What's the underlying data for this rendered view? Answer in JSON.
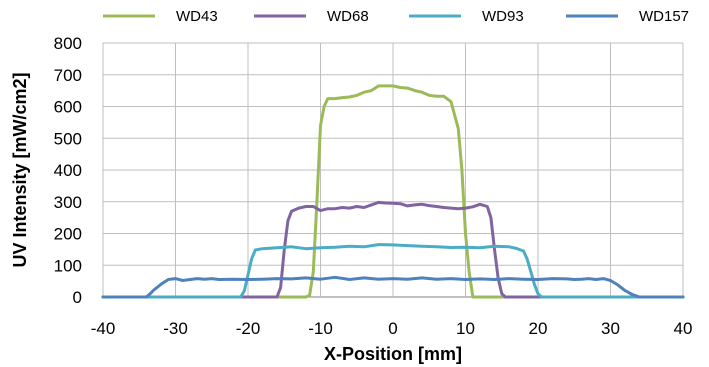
{
  "chart_data": {
    "type": "line",
    "title": "",
    "xlabel": "X-Position [mm]",
    "ylabel": "UV Intensity [mW/cm2]",
    "xlim": [
      -40,
      40
    ],
    "ylim": [
      0,
      800
    ],
    "xticks": [
      -40,
      -30,
      -20,
      -10,
      0,
      10,
      20,
      30,
      40
    ],
    "yticks": [
      0,
      100,
      200,
      300,
      400,
      500,
      600,
      700,
      800
    ],
    "grid": true,
    "legend_position": "top",
    "series": [
      {
        "name": "WD43",
        "color": "#9bbb59",
        "x": [
          -40,
          -15,
          -12,
          -11.5,
          -11,
          -10.5,
          -10,
          -9.5,
          -9,
          -8,
          -7,
          -6,
          -5,
          -4,
          -3,
          -2,
          -1,
          0,
          1,
          2,
          3,
          4,
          5,
          6,
          7,
          8,
          9,
          9.5,
          10,
          10.5,
          11,
          11.5,
          12,
          15,
          40
        ],
        "y": [
          0,
          0,
          0,
          5,
          80,
          300,
          540,
          600,
          625,
          625,
          628,
          630,
          635,
          645,
          650,
          665,
          665,
          665,
          660,
          658,
          650,
          645,
          635,
          632,
          632,
          615,
          530,
          400,
          200,
          80,
          0,
          0,
          0,
          0,
          0
        ]
      },
      {
        "name": "WD68",
        "color": "#8064a2",
        "x": [
          -40,
          -16,
          -15.5,
          -15,
          -14.5,
          -14,
          -13,
          -12,
          -11,
          -10,
          -9,
          -8,
          -7,
          -6,
          -5,
          -4,
          -3,
          -2,
          -1,
          0,
          1,
          2,
          3,
          4,
          5,
          6,
          7,
          8,
          9,
          10,
          11,
          12,
          13,
          13.5,
          14,
          14.5,
          15,
          15.5,
          16,
          40
        ],
        "y": [
          0,
          0,
          30,
          150,
          240,
          270,
          280,
          285,
          285,
          272,
          278,
          278,
          282,
          280,
          285,
          282,
          290,
          298,
          296,
          295,
          294,
          287,
          290,
          292,
          288,
          285,
          282,
          280,
          278,
          280,
          284,
          292,
          285,
          250,
          150,
          60,
          10,
          0,
          0,
          0
        ]
      },
      {
        "name": "WD93",
        "color": "#4bacc6",
        "x": [
          -40,
          -21,
          -20.5,
          -20,
          -19.5,
          -19,
          -18,
          -16,
          -14,
          -12,
          -10,
          -8,
          -6,
          -4,
          -2,
          0,
          2,
          4,
          6,
          8,
          10,
          12,
          14,
          16,
          17,
          18,
          18.5,
          19,
          19.5,
          20,
          20.5,
          21,
          40
        ],
        "y": [
          0,
          0,
          20,
          70,
          120,
          148,
          152,
          155,
          158,
          152,
          155,
          157,
          160,
          158,
          165,
          164,
          162,
          160,
          158,
          156,
          157,
          155,
          160,
          158,
          153,
          145,
          120,
          80,
          40,
          10,
          0,
          0,
          0
        ],
        "hidden": false
      },
      {
        "name": "WD157",
        "color": "#4f81bd",
        "x": [
          -40,
          -34,
          -33.5,
          -33,
          -32,
          -31,
          -30,
          -29,
          -28,
          -27,
          -26,
          -25,
          -24,
          -22,
          -20,
          -18,
          -16,
          -14,
          -12,
          -10,
          -8,
          -6,
          -4,
          -2,
          0,
          2,
          4,
          6,
          8,
          10,
          12,
          14,
          16,
          18,
          20,
          22,
          24,
          25,
          26,
          27,
          28,
          29,
          30,
          31,
          32,
          33,
          34,
          40
        ],
        "y": [
          0,
          0,
          10,
          22,
          40,
          55,
          58,
          52,
          55,
          58,
          56,
          58,
          55,
          56,
          55,
          56,
          58,
          57,
          60,
          56,
          62,
          55,
          60,
          56,
          58,
          56,
          60,
          56,
          58,
          55,
          57,
          55,
          58,
          56,
          55,
          58,
          57,
          55,
          56,
          58,
          55,
          58,
          52,
          38,
          20,
          8,
          0,
          0
        ]
      }
    ]
  }
}
